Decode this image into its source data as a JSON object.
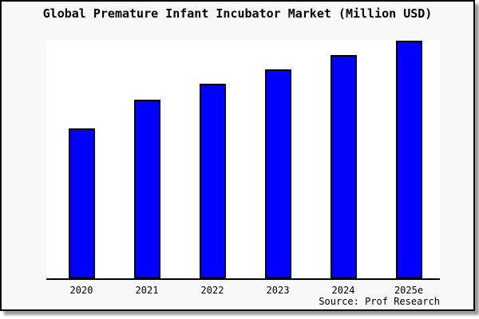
{
  "header": {
    "title": "Global Premature Infant Incubator Market (Million USD)"
  },
  "source": {
    "label": "Source: Prof Research"
  },
  "colors": {
    "bar_fill": "#0000ff",
    "bar_border": "#000000",
    "panel_background": "#f8f8f8",
    "plot_background": "#ffffff",
    "axis_line": "#000000",
    "text": "#000000"
  },
  "chart_data": {
    "type": "bar",
    "title": "Global Premature Infant Incubator Market (Million USD)",
    "categories": [
      "2020",
      "2021",
      "2022",
      "2023",
      "2024",
      "2025e"
    ],
    "values": [
      63,
      75,
      82,
      88,
      94,
      100
    ],
    "value_note": "No y-axis ticks or value labels are shown in the figure; values are relative bar heights with the tallest bar (2025e) = 100",
    "ylim": [
      0,
      100
    ],
    "xlabel": "",
    "ylabel": "",
    "grid": false,
    "legend": false,
    "annotations": [
      "Source: Prof Research"
    ]
  }
}
